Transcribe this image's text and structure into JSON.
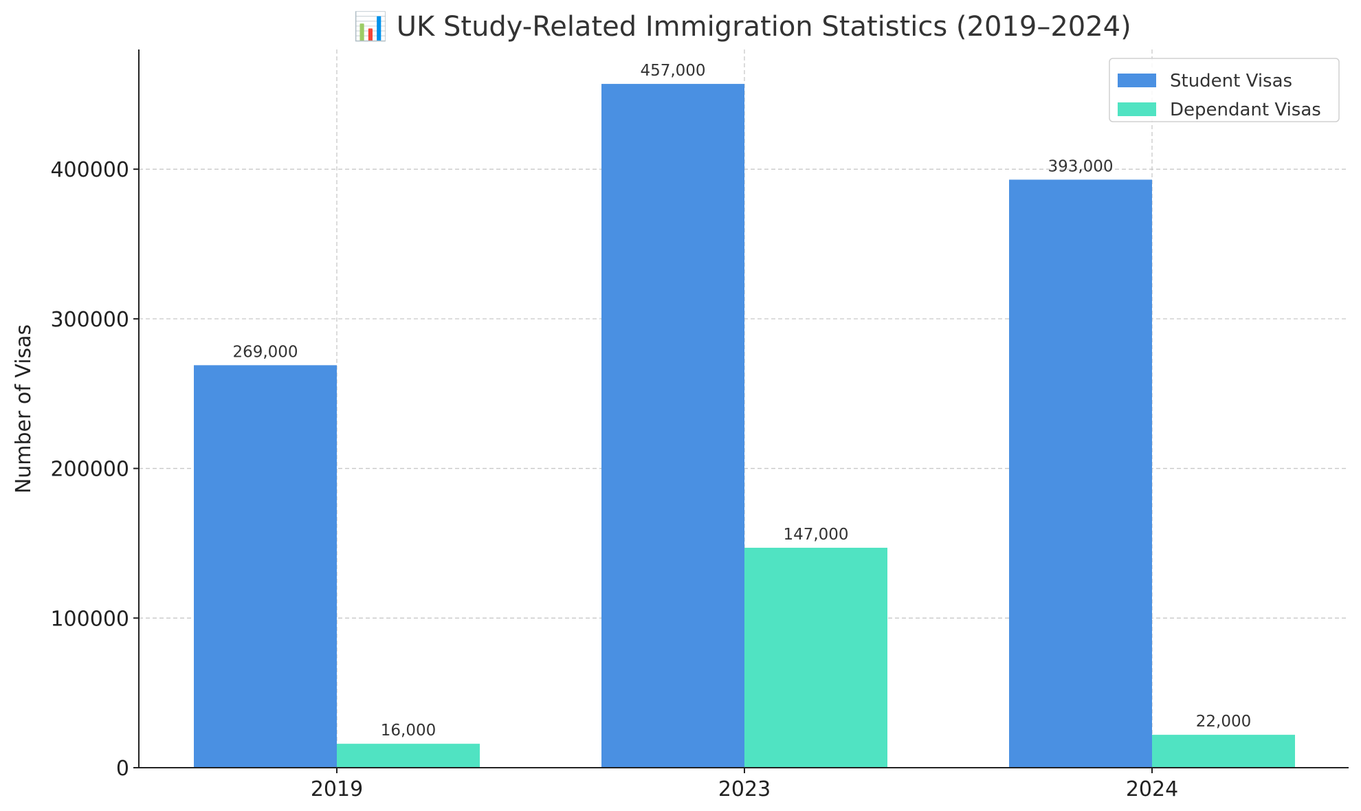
{
  "chart_data": {
    "type": "bar",
    "title": "📊 UK Study-Related Immigration Statistics (2019–2024)",
    "xlabel": "",
    "ylabel": "Number of Visas",
    "categories": [
      "2019",
      "2023",
      "2024"
    ],
    "series": [
      {
        "name": "Student Visas",
        "color": "#4A90E2",
        "values": [
          269000,
          457000,
          393000
        ],
        "labels": [
          "269,000",
          "457,000",
          "393,000"
        ]
      },
      {
        "name": "Dependant Visas",
        "color": "#50E3C2",
        "values": [
          16000,
          147000,
          22000
        ],
        "labels": [
          "16,000",
          "147,000",
          "22,000"
        ]
      }
    ],
    "yticks": [
      0,
      100000,
      200000,
      300000,
      400000
    ],
    "ytick_labels": [
      "0",
      "100000",
      "200000",
      "300000",
      "400000"
    ],
    "ylim": [
      0,
      480000
    ],
    "grid": true,
    "legend_position": "top-right"
  }
}
